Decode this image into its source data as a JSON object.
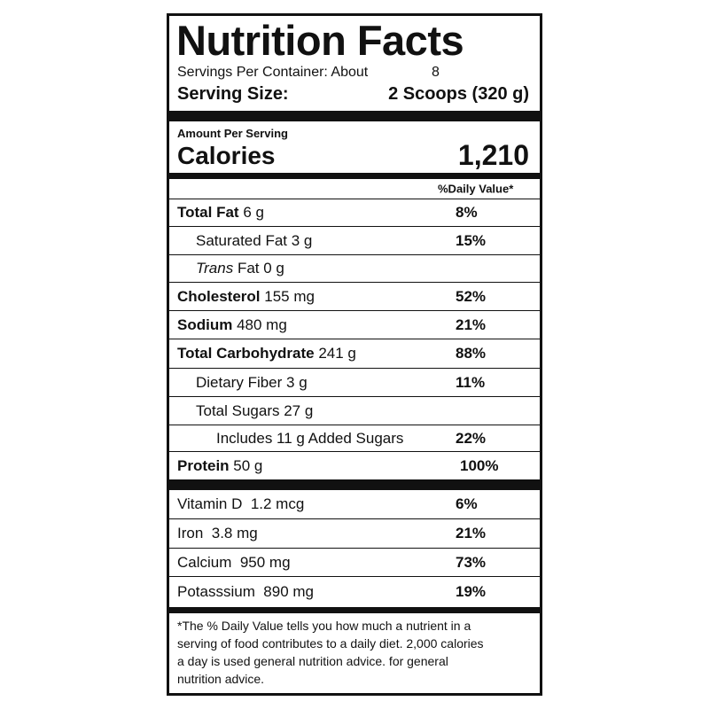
{
  "header": {
    "title": "Nutrition Facts",
    "servings_label": "Servings Per Container: About",
    "servings_value": "8",
    "serving_size_label": "Serving Size:",
    "serving_size_value": "2 Scoops (320 g)"
  },
  "calories": {
    "amount_per_serving": "Amount Per Serving",
    "label": "Calories",
    "value": "1,210"
  },
  "daily_value_header": "%Daily Value*",
  "nutrients": [
    {
      "name": "Total Fat",
      "amount": "6 g",
      "daily_value": "8%"
    },
    {
      "name": "Saturated Fat 3 g",
      "daily_value": "15%"
    },
    {
      "name": "Trans",
      "amount": "Fat 0 g"
    },
    {
      "name": "Cholesterol",
      "amount": "155 mg",
      "daily_value": "52%"
    },
    {
      "name": "Sodium",
      "amount": "480 mg",
      "daily_value": "21%"
    },
    {
      "name": "Total Carbohydrate",
      "amount": "241 g",
      "daily_value": "88%"
    },
    {
      "name": "Dietary Fiber 3 g",
      "daily_value": "11%"
    },
    {
      "name": "Total Sugars 27 g"
    },
    {
      "name": "Includes 11 g Added Sugars",
      "daily_value": "22%"
    },
    {
      "name": "Protein",
      "amount": "50 g",
      "daily_value": "100%"
    }
  ],
  "vitamins": [
    {
      "name": "Vitamin D  1.2 mcg",
      "daily_value": "6%"
    },
    {
      "name": "Iron  3.8 mg",
      "daily_value": "21%"
    },
    {
      "name": "Calcium  950 mg",
      "daily_value": "73%"
    },
    {
      "name": "Potasssium  890 mg",
      "daily_value": "19%"
    }
  ],
  "footnote": [
    "*The % Daily Value tells you how much a nutrient in a",
    "serving of food contributes to a daily diet. 2,000 calories",
    "a day is used general nutrition advice. for general",
    "nutrition advice."
  ]
}
